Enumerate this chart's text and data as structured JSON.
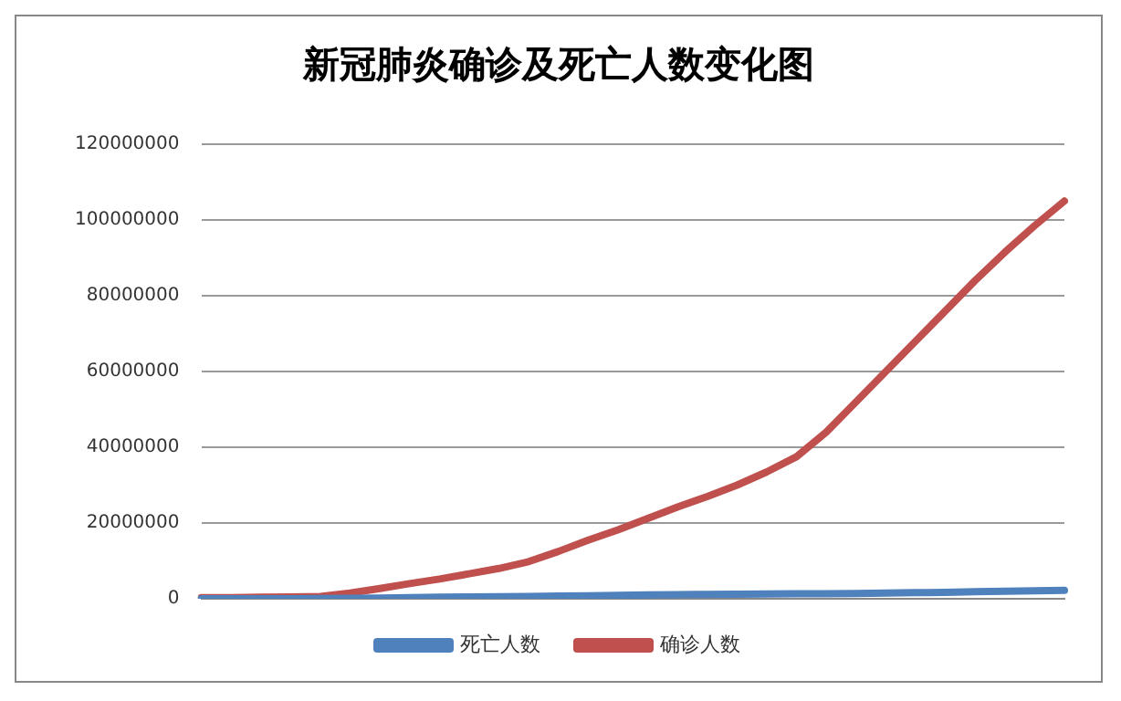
{
  "chart_data": {
    "type": "line",
    "title": "新冠肺炎确诊及死亡人数变化图",
    "categories": [
      null,
      null,
      null,
      null,
      null,
      null,
      null,
      null,
      null,
      null,
      null,
      null,
      null,
      null,
      null,
      null,
      null,
      null,
      null,
      null,
      null,
      null,
      null,
      null,
      null,
      null,
      null,
      null,
      null,
      null
    ],
    "series": [
      {
        "name": "死亡人数",
        "color": "#4f81bd",
        "values": [
          10000,
          10000,
          20000,
          30000,
          50000,
          100000,
          200000,
          300000,
          400000,
          500000,
          550000,
          600000,
          700000,
          800000,
          900000,
          1000000,
          1100000,
          1150000,
          1200000,
          1250000,
          1300000,
          1350000,
          1400000,
          1500000,
          1600000,
          1700000,
          1850000,
          2000000,
          2100000,
          2200000
        ]
      },
      {
        "name": "确诊人数",
        "color": "#c0504d",
        "values": [
          300000,
          300000,
          400000,
          500000,
          600000,
          1500000,
          2700000,
          4000000,
          5200000,
          6600000,
          8000000,
          9800000,
          12500000,
          15500000,
          18200000,
          21200000,
          24200000,
          27000000,
          30000000,
          33500000,
          37500000,
          44000000,
          52000000,
          60000000,
          68000000,
          76000000,
          84000000,
          91500000,
          98500000,
          105000000
        ]
      }
    ],
    "ylim": [
      0,
      120000000
    ],
    "yticks": [
      0,
      20000000,
      40000000,
      60000000,
      80000000,
      100000000,
      120000000
    ],
    "grid": "y",
    "legend": "bottom",
    "marker": "none",
    "line_style": "solid"
  }
}
